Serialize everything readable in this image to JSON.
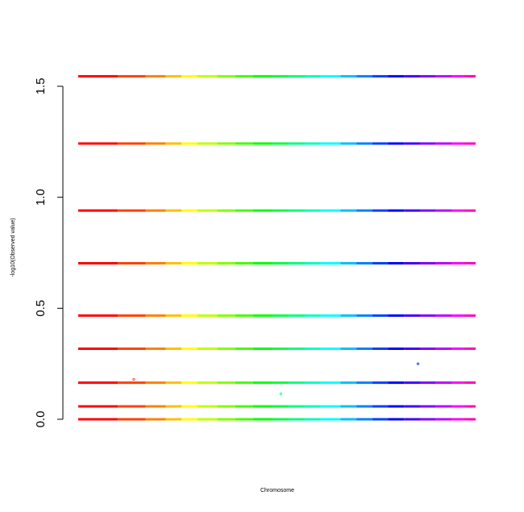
{
  "chart_data": {
    "type": "scatter",
    "title": "",
    "xlabel": "Chromosome",
    "ylabel": "-log10(Observed value)",
    "ylim": [
      0,
      1.6
    ],
    "yticks": [
      0.0,
      0.5,
      1.0,
      1.5
    ],
    "ytick_labels": [
      "0.0",
      "0.5",
      "1.0",
      "1.5"
    ],
    "grid": false,
    "legend": "none",
    "x_range": [
      0,
      1
    ],
    "band_levels": [
      0.0,
      0.058,
      0.165,
      0.318,
      0.467,
      0.703,
      0.94,
      1.242,
      1.545
    ],
    "segment_colors": [
      "#ff0000",
      "#ff4000",
      "#ff8000",
      "#ffbf00",
      "#ffff00",
      "#bfff00",
      "#80ff00",
      "#40ff00",
      "#00ff00",
      "#00ff40",
      "#00ff80",
      "#00ffbf",
      "#00ffff",
      "#00bfff",
      "#0080ff",
      "#0040ff",
      "#0000ff",
      "#4000ff",
      "#8000ff",
      "#bf00ff",
      "#ff00ff",
      "#ff00bf"
    ],
    "segment_breaks": [
      0,
      0.1,
      0.17,
      0.22,
      0.26,
      0.3,
      0.35,
      0.395,
      0.44,
      0.49,
      0.53,
      0.57,
      0.61,
      0.66,
      0.7,
      0.74,
      0.78,
      0.82,
      0.86,
      0.9,
      0.94,
      0.97,
      1.0
    ],
    "outlier_points": [
      {
        "x": 0.14,
        "y": 0.18,
        "color": "#ff3000"
      },
      {
        "x": 0.51,
        "y": 0.115,
        "color": "#00ff60"
      },
      {
        "x": 0.855,
        "y": 0.25,
        "color": "#0020ff"
      }
    ]
  }
}
